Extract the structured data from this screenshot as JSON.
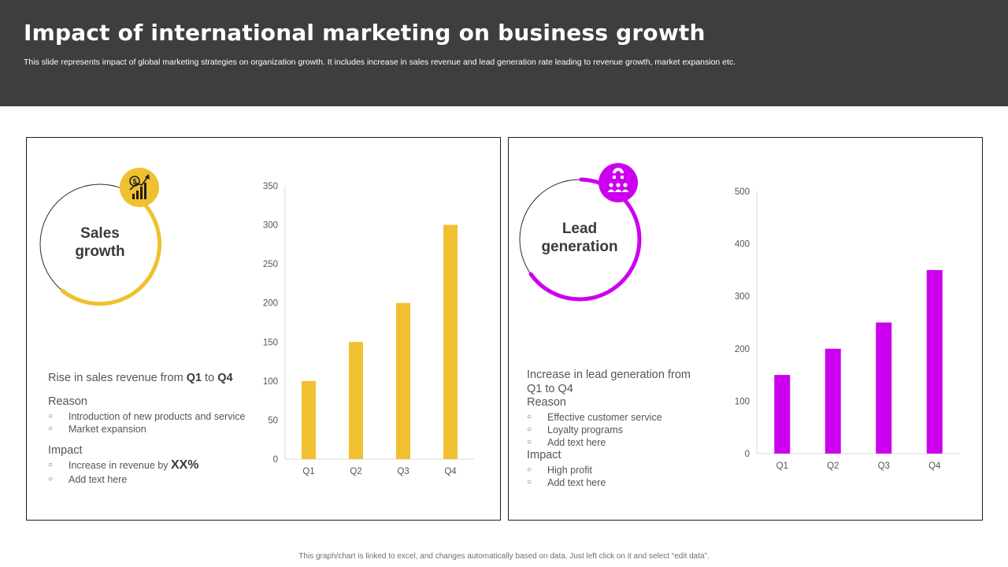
{
  "header": {
    "title": "Impact of international marketing on business growth",
    "subtitle": "This slide represents impact of global marketing strategies on organization growth. It includes increase in sales revenue and lead generation rate leading to revenue growth, market expansion etc."
  },
  "colors": {
    "header_bg": "#3e3e3e",
    "sales_accent": "#f0c030",
    "lead_accent": "#cc00ee"
  },
  "sales": {
    "icon": "growth-chart-dollar-icon",
    "label_line1": "Sales",
    "label_line2": "growth",
    "rise_prefix": "Rise in sales revenue from ",
    "rise_from": "Q1",
    "rise_mid": " to ",
    "rise_to": "Q4",
    "reason_heading": "Reason",
    "reasons": [
      "Introduction of new products and service",
      "Market expansion"
    ],
    "impact_heading": "Impact",
    "impact_1_text": "Increase in revenue  by ",
    "impact_1_value": "XX%",
    "impact_2": "Add text here"
  },
  "lead": {
    "icon": "magnet-people-icon",
    "label_line1": "Lead",
    "label_line2": "generation",
    "increase_line1": "Increase in lead generation from",
    "increase_line2": "Q1 to Q4",
    "reason_heading": "Reason",
    "reasons": [
      "Effective customer service",
      "Loyalty programs",
      "Add text here"
    ],
    "impact_heading": "Impact",
    "impacts": [
      "High profit",
      "Add text here"
    ]
  },
  "chart_data": [
    {
      "type": "bar",
      "title": "Sales growth",
      "categories": [
        "Q1",
        "Q2",
        "Q3",
        "Q4"
      ],
      "values": [
        100,
        150,
        200,
        300
      ],
      "ylim": [
        0,
        350
      ],
      "yticks": [
        0,
        50,
        100,
        150,
        200,
        250,
        300,
        350
      ],
      "color": "#f0c030",
      "xlabel": "",
      "ylabel": ""
    },
    {
      "type": "bar",
      "title": "Lead generation",
      "categories": [
        "Q1",
        "Q2",
        "Q3",
        "Q4"
      ],
      "values": [
        150,
        200,
        250,
        350
      ],
      "ylim": [
        0,
        500
      ],
      "yticks": [
        0,
        100,
        200,
        300,
        400,
        500
      ],
      "color": "#cc00ee",
      "xlabel": "",
      "ylabel": ""
    }
  ],
  "footer": {
    "note": "This graph/chart is linked to excel, and changes automatically based on data. Just left click on it and select “edit data”."
  }
}
